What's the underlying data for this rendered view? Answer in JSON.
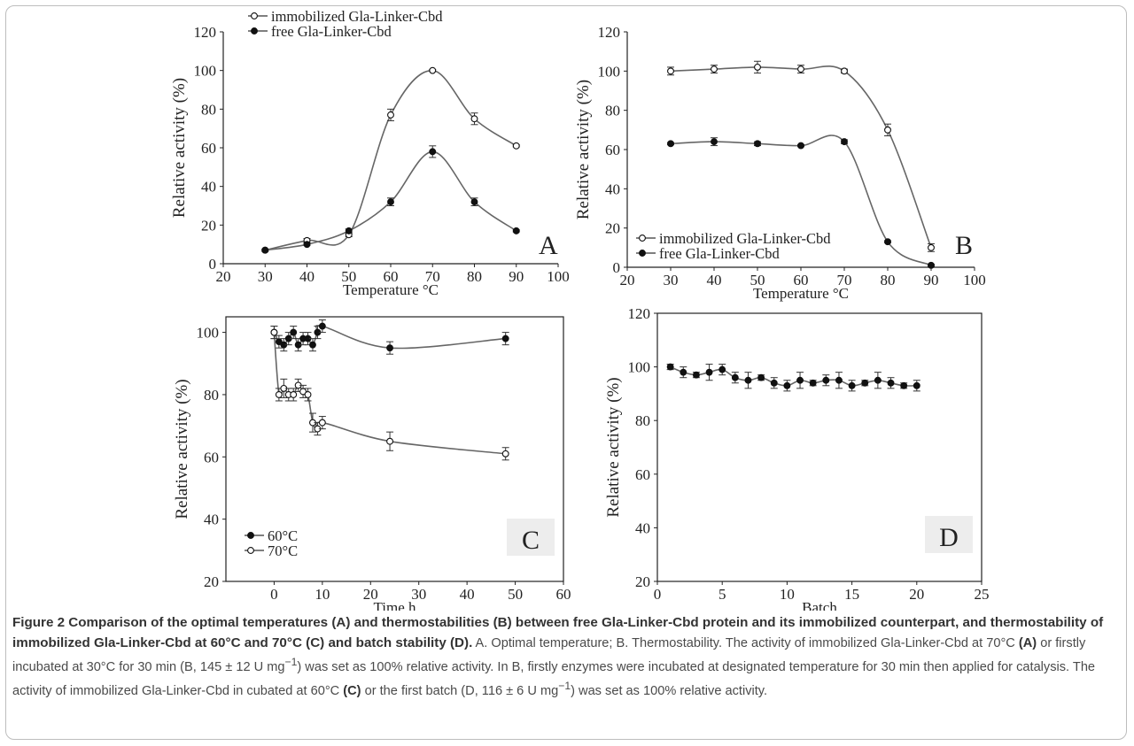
{
  "figure": {
    "caption_title": "Figure 2 Comparison of the optimal temperatures (A) and thermostabilities (B) between free Gla-Linker-Cbd protein and its immobilized counterpart, and thermostability of immobilized Gla-Linker-Cbd at 60°C and 70°C (C) and batch stability (D).",
    "caption_p1": " A. Optimal temperature; B. Thermostability. The activity of immobilized Gla-Linker-Cbd at 70°C ",
    "caption_p1_bold": "(A)",
    "caption_p2": " or firstly incubated at 30°C for 30 min (B, 145 ± 12 U mg",
    "caption_p2_sup": "−1",
    "caption_p3": ") was set as 100% relative activity. In B, firstly enzymes were incubated at designated temperature for 30 min then applied for catalysis. The activity of immobilized Gla-Linker-Cbd in cubated at 60°C ",
    "caption_p3_bold": "(C)",
    "caption_p4": " or the first batch (D, 116 ± 6 U mg",
    "caption_p4_sup": "−1",
    "caption_p5": ") was set as 100% relative activity."
  },
  "chart_data": [
    {
      "panel": "A",
      "type": "line",
      "xlabel": "Temperature  °C",
      "ylabel": "Relative activity (%)",
      "xlim": [
        20,
        100
      ],
      "ylim": [
        0,
        120
      ],
      "xticks": [
        20,
        30,
        40,
        50,
        60,
        70,
        80,
        90,
        100
      ],
      "yticks": [
        0,
        20,
        40,
        60,
        80,
        100,
        120
      ],
      "legend_position": "top-left",
      "grid": false,
      "series": [
        {
          "name": "immobilized Gla-Linker-Cbd",
          "marker": "open-circle",
          "x": [
            30,
            40,
            50,
            60,
            70,
            80,
            90
          ],
          "y": [
            7,
            12,
            15,
            77,
            100,
            75,
            61
          ],
          "err": [
            0.5,
            1,
            1,
            3,
            0.5,
            3,
            0.5
          ]
        },
        {
          "name": "free Gla-Linker-Cbd",
          "marker": "filled-circle",
          "x": [
            30,
            40,
            50,
            60,
            70,
            80,
            90
          ],
          "y": [
            7,
            10,
            17,
            32,
            58,
            32,
            17
          ],
          "err": [
            0.5,
            0.5,
            1,
            2,
            3,
            2,
            0.5
          ]
        }
      ]
    },
    {
      "panel": "B",
      "type": "line",
      "xlabel": "Temperature  °C",
      "ylabel": "Relative activity (%)",
      "xlim": [
        20,
        100
      ],
      "ylim": [
        0,
        120
      ],
      "xticks": [
        20,
        30,
        40,
        50,
        60,
        70,
        80,
        90,
        100
      ],
      "yticks": [
        0,
        20,
        40,
        60,
        80,
        100,
        120
      ],
      "legend_position": "bottom-left",
      "grid": false,
      "series": [
        {
          "name": "immobilized Gla-Linker-Cbd",
          "marker": "open-circle",
          "x": [
            30,
            40,
            50,
            60,
            70,
            80,
            90
          ],
          "y": [
            100,
            101,
            102,
            101,
            100,
            70,
            10
          ],
          "err": [
            2,
            2,
            3,
            2,
            1,
            3,
            2
          ]
        },
        {
          "name": "free Gla-Linker-Cbd",
          "marker": "filled-circle",
          "x": [
            30,
            40,
            50,
            60,
            70,
            80,
            90
          ],
          "y": [
            63,
            64,
            63,
            62,
            64,
            13,
            1
          ],
          "err": [
            0.5,
            2,
            1,
            0.5,
            1,
            0.5,
            0.5
          ]
        }
      ]
    },
    {
      "panel": "C",
      "type": "line",
      "xlabel": "Time h",
      "ylabel": "Relative activity (%)",
      "xlim": [
        -10,
        60
      ],
      "ylim": [
        20,
        105
      ],
      "xticks": [
        0,
        10,
        20,
        30,
        40,
        50,
        60
      ],
      "yticks": [
        20,
        40,
        60,
        80,
        100
      ],
      "legend_position": "bottom-left",
      "grid": false,
      "series": [
        {
          "name": "60°C",
          "marker": "filled-circle",
          "x": [
            0,
            1,
            2,
            3,
            4,
            5,
            6,
            7,
            8,
            9,
            10,
            24,
            48
          ],
          "y": [
            100,
            97,
            96,
            98,
            100,
            96,
            98,
            98,
            96,
            100,
            102,
            95,
            98
          ],
          "err": [
            2,
            2,
            2,
            2,
            2,
            2,
            2,
            2,
            2,
            2,
            2,
            2,
            2
          ]
        },
        {
          "name": "70°C",
          "marker": "open-circle",
          "x": [
            0,
            1,
            2,
            3,
            4,
            5,
            6,
            7,
            8,
            9,
            10,
            24,
            48
          ],
          "y": [
            100,
            80,
            82,
            80,
            80,
            83,
            81,
            80,
            71,
            69,
            71,
            65,
            61
          ],
          "err": [
            2,
            2,
            3,
            2,
            2,
            2,
            2,
            2,
            3,
            2,
            2,
            3,
            2
          ]
        }
      ]
    },
    {
      "panel": "D",
      "type": "line",
      "xlabel": "Batch",
      "ylabel": "Relative activity (%)",
      "xlim": [
        0,
        25
      ],
      "ylim": [
        20,
        120
      ],
      "xticks": [
        0,
        5,
        10,
        15,
        20,
        25
      ],
      "yticks": [
        20,
        40,
        60,
        80,
        100,
        120
      ],
      "grid": false,
      "series": [
        {
          "marker": "filled-circle",
          "x": [
            1,
            2,
            3,
            4,
            5,
            6,
            7,
            8,
            9,
            10,
            11,
            12,
            13,
            14,
            15,
            16,
            17,
            18,
            19,
            20
          ],
          "y": [
            100,
            98,
            97,
            98,
            99,
            96,
            95,
            96,
            94,
            93,
            95,
            94,
            95,
            95,
            93,
            94,
            95,
            94,
            93,
            93
          ],
          "err": [
            1,
            2,
            1,
            3,
            2,
            2,
            3,
            1,
            2,
            2,
            3,
            1,
            2,
            3,
            2,
            1,
            3,
            2,
            1,
            2
          ]
        }
      ]
    }
  ]
}
